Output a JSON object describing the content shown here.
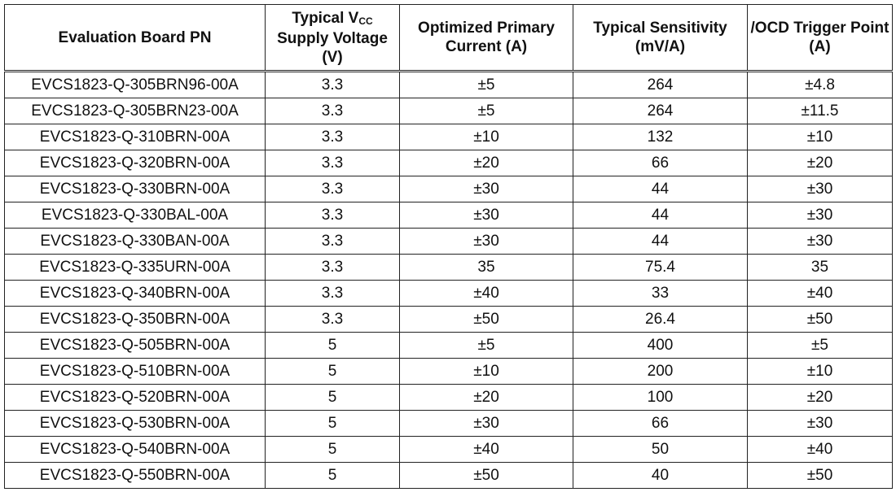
{
  "table": {
    "columns": [
      "Evaluation Board PN",
      {
        "main": "Typical V",
        "sub": "CC",
        "tail": "Supply Voltage (V)"
      },
      "Optimized Primary Current (A)",
      "Typical Sensitivity (mV/A)",
      "/OCD Trigger Point (A)"
    ],
    "rows": [
      [
        "EVCS1823-Q-305BRN96-00A",
        "3.3",
        "±5",
        "264",
        "±4.8"
      ],
      [
        "EVCS1823-Q-305BRN23-00A",
        "3.3",
        "±5",
        "264",
        "±11.5"
      ],
      [
        "EVCS1823-Q-310BRN-00A",
        "3.3",
        "±10",
        "132",
        "±10"
      ],
      [
        "EVCS1823-Q-320BRN-00A",
        "3.3",
        "±20",
        "66",
        "±20"
      ],
      [
        "EVCS1823-Q-330BRN-00A",
        "3.3",
        "±30",
        "44",
        "±30"
      ],
      [
        "EVCS1823-Q-330BAL-00A",
        "3.3",
        "±30",
        "44",
        "±30"
      ],
      [
        "EVCS1823-Q-330BAN-00A",
        "3.3",
        "±30",
        "44",
        "±30"
      ],
      [
        "EVCS1823-Q-335URN-00A",
        "3.3",
        "35",
        "75.4",
        "35"
      ],
      [
        "EVCS1823-Q-340BRN-00A",
        "3.3",
        "±40",
        "33",
        "±40"
      ],
      [
        "EVCS1823-Q-350BRN-00A",
        "3.3",
        "±50",
        "26.4",
        "±50"
      ],
      [
        "EVCS1823-Q-505BRN-00A",
        "5",
        "±5",
        "400",
        "±5"
      ],
      [
        "EVCS1823-Q-510BRN-00A",
        "5",
        "±10",
        "200",
        "±10"
      ],
      [
        "EVCS1823-Q-520BRN-00A",
        "5",
        "±20",
        "100",
        "±20"
      ],
      [
        "EVCS1823-Q-530BRN-00A",
        "5",
        "±30",
        "66",
        "±30"
      ],
      [
        "EVCS1823-Q-540BRN-00A",
        "5",
        "±40",
        "50",
        "±40"
      ],
      [
        "EVCS1823-Q-550BRN-00A",
        "5",
        "±50",
        "40",
        "±50"
      ]
    ]
  }
}
